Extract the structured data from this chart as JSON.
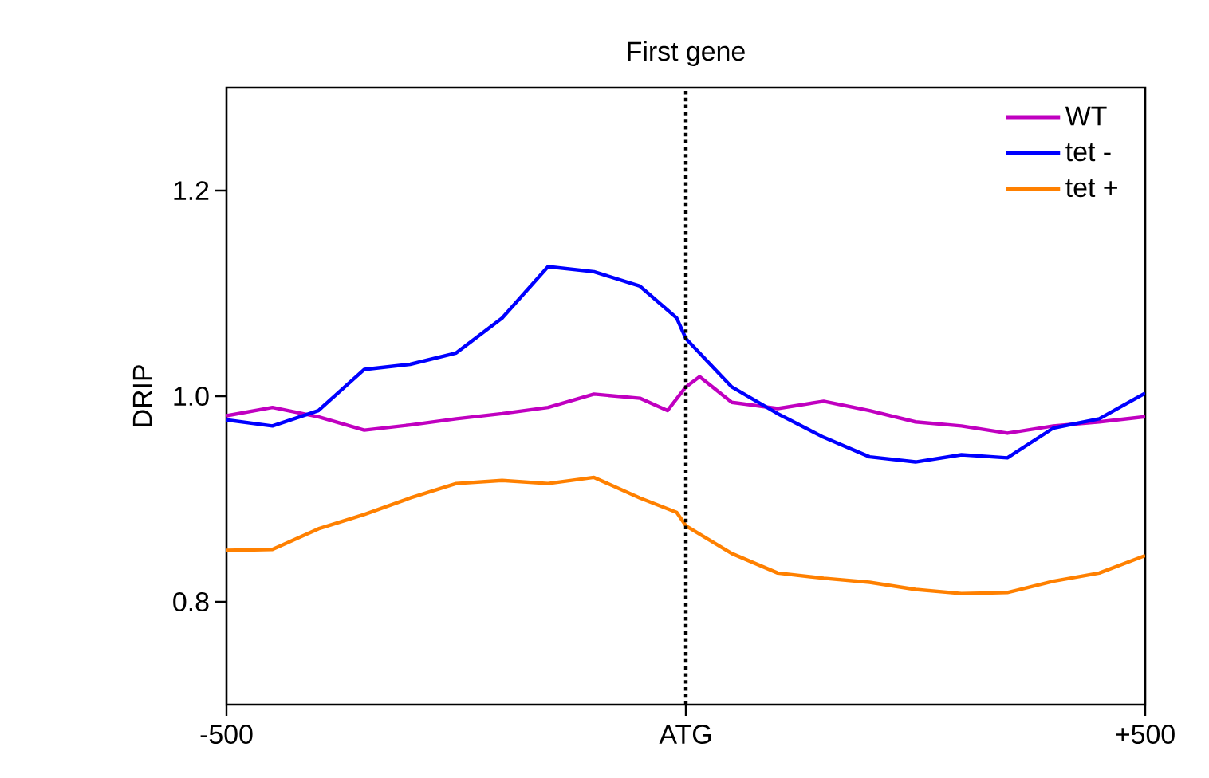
{
  "chart_data": {
    "type": "line",
    "title": "First gene",
    "ylabel": "DRIP",
    "xlim": [
      -500,
      500
    ],
    "ylim": [
      0.7,
      1.3
    ],
    "xticks": [
      {
        "value": -500,
        "label": "-500"
      },
      {
        "value": 0,
        "label": "ATG"
      },
      {
        "value": 500,
        "label": "+500"
      }
    ],
    "yticks": [
      {
        "value": 0.8,
        "label": "0.8"
      },
      {
        "value": 1.0,
        "label": "1.0"
      },
      {
        "value": 1.2,
        "label": "1.2"
      }
    ],
    "grid": false,
    "legend": "top right",
    "marker": "none",
    "line_style": "solid",
    "ref_lines": [
      {
        "axis": "x",
        "value": 0,
        "color": "#000000",
        "line_style": "dotted"
      }
    ],
    "series": [
      {
        "name": "WT",
        "color": "#c000c0",
        "x": [
          -500,
          -450,
          -400,
          -350,
          -300,
          -250,
          -200,
          -150,
          -100,
          -50,
          -20,
          0,
          15,
          50,
          100,
          150,
          200,
          250,
          300,
          350,
          400,
          450,
          500
        ],
        "values": [
          0.981,
          0.989,
          0.98,
          0.967,
          0.972,
          0.978,
          0.983,
          0.989,
          1.002,
          0.998,
          0.986,
          1.009,
          1.019,
          0.994,
          0.988,
          0.995,
          0.986,
          0.975,
          0.971,
          0.964,
          0.971,
          0.975,
          0.98
        ]
      },
      {
        "name": "tet -",
        "color": "#0000ff",
        "x": [
          -500,
          -450,
          -400,
          -350,
          -300,
          -250,
          -200,
          -150,
          -100,
          -50,
          -10,
          0,
          50,
          100,
          150,
          200,
          250,
          300,
          350,
          400,
          450,
          500
        ],
        "values": [
          0.977,
          0.971,
          0.986,
          1.026,
          1.031,
          1.042,
          1.076,
          1.126,
          1.121,
          1.107,
          1.076,
          1.056,
          1.009,
          0.983,
          0.96,
          0.941,
          0.936,
          0.943,
          0.94,
          0.969,
          0.978,
          1.003
        ]
      },
      {
        "name": "tet +",
        "color": "#ff8000",
        "x": [
          -500,
          -450,
          -400,
          -350,
          -300,
          -250,
          -200,
          -150,
          -100,
          -50,
          -10,
          0,
          50,
          100,
          150,
          200,
          250,
          300,
          350,
          400,
          450,
          500
        ],
        "values": [
          0.85,
          0.851,
          0.871,
          0.885,
          0.901,
          0.915,
          0.918,
          0.915,
          0.921,
          0.901,
          0.887,
          0.874,
          0.847,
          0.828,
          0.823,
          0.819,
          0.812,
          0.808,
          0.809,
          0.82,
          0.828,
          0.845
        ]
      }
    ]
  }
}
